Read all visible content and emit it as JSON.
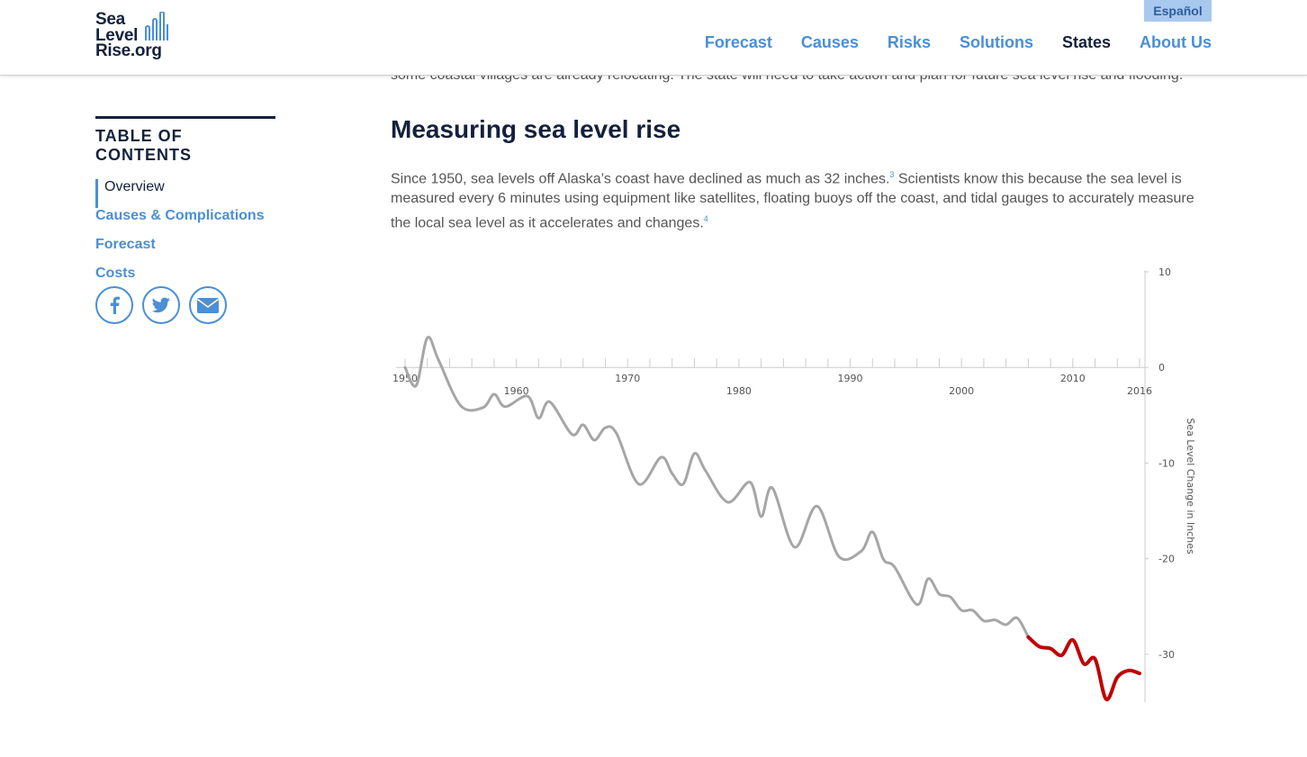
{
  "header": {
    "logo_lines": [
      "Sea",
      "Level",
      "Rise.org"
    ],
    "language": "Español",
    "nav": [
      "Forecast",
      "Causes",
      "Risks",
      "Solutions",
      "States",
      "About Us"
    ]
  },
  "toc": {
    "title": "TABLE OF CONTENTS",
    "items": [
      "Overview",
      "Causes & Complications",
      "Forecast",
      "Costs"
    ]
  },
  "article": {
    "intro_tail": "some coastal villages are already relocating. The state will need to take action and plan for future sea level rise and flooding.",
    "heading": "Measuring sea level rise",
    "paragraph_part1": "Since 1950, sea levels off Alaska’s coast have declined as much as 32 inches.",
    "footnote1": "3",
    "paragraph_part2": " Scientists know this because the sea level is measured every 6 minutes using equipment like satellites, floating buoys off the coast, and tidal gauges to accurately measure the local sea level as it accelerates and changes.",
    "footnote2": "4"
  },
  "chart_data": {
    "type": "line",
    "y_label": "Sea Level Change in Inches",
    "xlim": [
      1950,
      2016
    ],
    "xticks": [
      1950,
      1960,
      1970,
      1980,
      1990,
      2000,
      2010,
      2016
    ],
    "xminorticks": [
      1952,
      1954,
      1956,
      1958,
      1962,
      1964,
      1966,
      1968,
      1972,
      1974,
      1976,
      1978,
      1982,
      1984,
      1986,
      1988,
      1992,
      1994,
      1996,
      1998,
      2002,
      2004,
      2006,
      2008,
      2012,
      2014
    ],
    "ylim": [
      -35,
      10
    ],
    "yticks": [
      10,
      0,
      -10,
      -20,
      -30
    ],
    "series": [
      {
        "color": "#a6a6a6",
        "x": [
          1950,
          1951,
          1952,
          1953,
          1955,
          1957,
          1958,
          1959,
          1961,
          1962,
          1963,
          1965,
          1966,
          1967,
          1968,
          1969,
          1971,
          1973,
          1974,
          1975,
          1976,
          1977,
          1979,
          1981,
          1982,
          1983,
          1985,
          1987,
          1989,
          1991,
          1992,
          1993,
          1994,
          1996,
          1997,
          1998,
          1999,
          2000,
          2001,
          2002,
          2003,
          2004,
          2005,
          2006
        ],
        "values": [
          0,
          -1.9,
          3.1,
          0.8,
          -4,
          -4.2,
          -2.8,
          -4.1,
          -3,
          -5.3,
          -3.6,
          -7,
          -6,
          -7.6,
          -6.3,
          -6.9,
          -12.2,
          -9.4,
          -11.1,
          -12.2,
          -9,
          -10.8,
          -14.1,
          -12,
          -15.6,
          -12.6,
          -18.8,
          -14.5,
          -19.8,
          -19.2,
          -17.2,
          -20.1,
          -20.9,
          -24.8,
          -22.1,
          -23.7,
          -24,
          -25.4,
          -25.4,
          -26.5,
          -26.4,
          -26.9,
          -26.2,
          -28.2
        ]
      },
      {
        "color": "#c00000",
        "x": [
          2006,
          2007,
          2008,
          2009,
          2010,
          2011,
          2012,
          2013,
          2014,
          2015,
          2016
        ],
        "values": [
          -28.2,
          -29.2,
          -29.4,
          -30.1,
          -28.5,
          -31,
          -30.5,
          -34.7,
          -32.4,
          -31.7,
          -32
        ]
      }
    ]
  }
}
